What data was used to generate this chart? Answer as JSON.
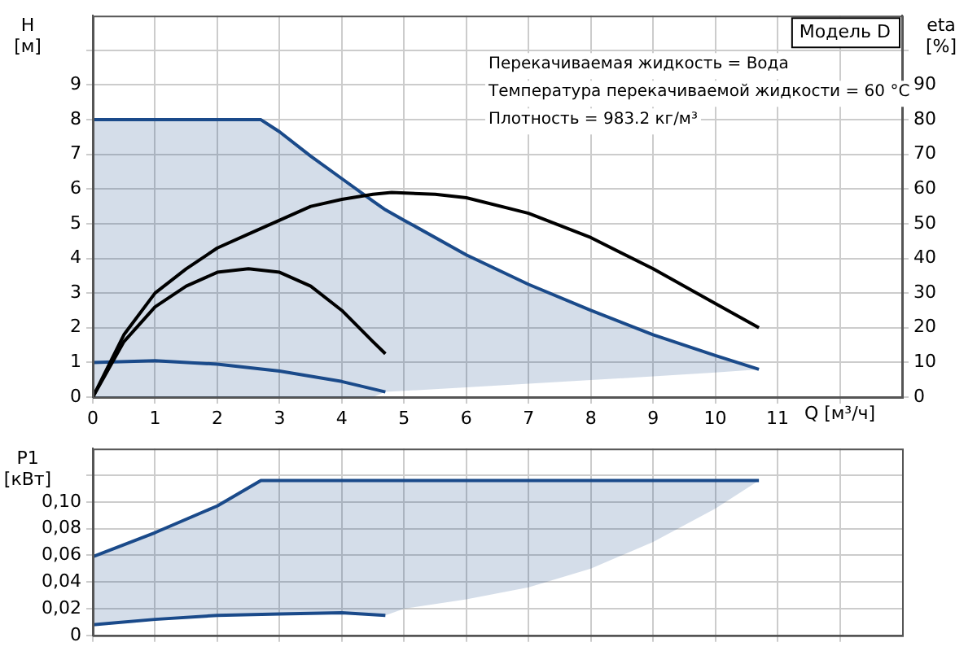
{
  "chart_data": [
    {
      "type": "line",
      "title": "Модель D",
      "xlabel": "Q [м³/ч]",
      "ylabel": "H [м]",
      "y2label": "eta [%]",
      "annotations": [
        "Перекачиваемая жидкость = Вода",
        "Температура перекачиваемой жидкости = 60 °C",
        "Плотность = 983.2 кг/м³"
      ],
      "xlim": [
        0,
        13
      ],
      "xticks": [
        0,
        1,
        2,
        3,
        4,
        5,
        6,
        7,
        8,
        9,
        10,
        11,
        {
          "value": 12,
          "label": null
        }
      ],
      "ylim": [
        0,
        11
      ],
      "yticks": [
        0,
        1,
        2,
        3,
        4,
        5,
        6,
        7,
        8,
        9,
        {
          "value": 10,
          "label": null
        }
      ],
      "y2lim": [
        0,
        110
      ],
      "y2ticks": [
        0,
        10,
        20,
        30,
        40,
        50,
        60,
        70,
        80,
        90,
        {
          "value": 100,
          "label": null
        }
      ],
      "grid": true,
      "legend": false,
      "series": [
        {
          "color": "#1a4a8a",
          "x": [
            0,
            2.7,
            3,
            3.5,
            4,
            4.5,
            4.7,
            5,
            6,
            7,
            8,
            9,
            10,
            10.7
          ],
          "values": [
            8,
            8,
            7.65,
            6.95,
            6.3,
            5.65,
            5.4,
            5.1,
            4.1,
            3.25,
            2.5,
            1.8,
            1.2,
            0.8
          ],
          "upper": [
            8,
            8,
            7.65,
            6.95,
            6.3,
            5.65,
            5.4,
            5.1,
            4.1,
            3.25,
            2.5,
            1.8,
            1.2,
            0.8
          ],
          "lower": [
            0,
            0,
            0,
            0,
            0,
            0,
            0.15,
            0.18,
            0.28,
            0.39,
            0.49,
            0.6,
            0.71,
            0.8
          ]
        },
        {
          "color": "#1a4a8a",
          "x": [
            0,
            1,
            2,
            3,
            4,
            4.7
          ],
          "values": [
            1,
            1.05,
            0.95,
            0.75,
            0.45,
            0.15
          ]
        },
        {
          "color": "#000000",
          "axis": "y2",
          "x": [
            0,
            0.5,
            1,
            1.5,
            2,
            2.5,
            3,
            3.5,
            4,
            4.5,
            4.8,
            5.5,
            6,
            7,
            8,
            9,
            10,
            10.7
          ],
          "values": [
            0,
            18,
            30,
            37,
            43,
            47,
            51,
            55,
            57,
            58.5,
            59,
            58.5,
            57.5,
            53,
            46,
            37,
            27,
            20
          ]
        },
        {
          "color": "#000000",
          "axis": "y2",
          "x": [
            0,
            0.5,
            1,
            1.5,
            2,
            2.5,
            3,
            3.5,
            4,
            4.5,
            4.7
          ],
          "values": [
            0,
            16,
            26,
            32,
            36,
            37,
            36,
            32,
            25,
            16,
            12.5
          ]
        }
      ]
    },
    {
      "type": "line",
      "ylabel": "P1 [кВт]",
      "xlim": [
        0,
        13
      ],
      "xticks": [
        0,
        1,
        2,
        3,
        4,
        5,
        6,
        7,
        8,
        9,
        10,
        11,
        12
      ],
      "ylim": [
        0,
        0.14
      ],
      "yticks": [
        0,
        {
          "value": 0.02,
          "label": "0,02"
        },
        {
          "value": 0.04,
          "label": "0,04"
        },
        {
          "value": 0.06,
          "label": "0,06"
        },
        {
          "value": 0.08,
          "label": "0,08"
        },
        {
          "value": 0.1,
          "label": "0,10"
        },
        {
          "value": 0.12,
          "label": null
        }
      ],
      "tick_labels": "y",
      "grid": true,
      "legend": false,
      "series": [
        {
          "color": "#1a4a8a",
          "x": [
            0,
            1,
            2,
            2.7,
            4,
            4.7,
            5,
            6,
            7,
            8,
            9,
            10,
            10.7
          ],
          "values": [
            0.059,
            0.077,
            0.097,
            0.116,
            0.116,
            0.116,
            0.116,
            0.116,
            0.116,
            0.116,
            0.116,
            0.116,
            0.116
          ],
          "upper": [
            0.059,
            0.077,
            0.097,
            0.116,
            0.116,
            0.116,
            0.116,
            0.116,
            0.116,
            0.116,
            0.116,
            0.116,
            0.116
          ],
          "lower": [
            0.008,
            0.012,
            0.015,
            0.016,
            0.017,
            0.015,
            0.02,
            0.027,
            0.036,
            0.05,
            0.07,
            0.095,
            0.116
          ]
        },
        {
          "color": "#1a4a8a",
          "x": [
            0,
            1,
            2,
            3,
            4,
            4.7
          ],
          "values": [
            0.008,
            0.012,
            0.015,
            0.016,
            0.017,
            0.015
          ]
        }
      ]
    }
  ]
}
